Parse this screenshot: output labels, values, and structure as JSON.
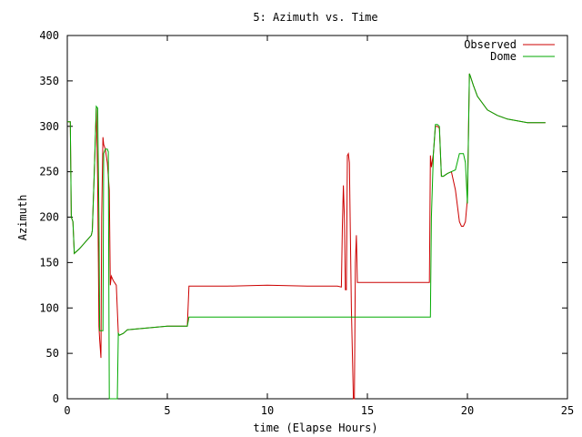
{
  "chart_data": {
    "type": "line",
    "title": "5: Azimuth vs. Time",
    "xlabel": "time (Elapse Hours)",
    "ylabel": "Azimuth",
    "xlim": [
      0,
      25
    ],
    "ylim": [
      0,
      400
    ],
    "xticks": [
      0,
      5,
      10,
      15,
      20,
      25
    ],
    "yticks": [
      0,
      50,
      100,
      150,
      200,
      250,
      300,
      350,
      400
    ],
    "grid": false,
    "legend_position": "top-right",
    "series": [
      {
        "name": "Observed",
        "color": "#cc0000",
        "x": [
          0.0,
          0.15,
          0.2,
          0.28,
          0.35,
          0.6,
          1.0,
          1.2,
          1.25,
          1.35,
          1.45,
          1.52,
          1.58,
          1.62,
          1.68,
          1.72,
          1.78,
          1.82,
          1.9,
          2.0,
          2.1,
          2.15,
          2.2,
          2.3,
          2.45,
          2.55,
          2.6,
          2.8,
          3.0,
          4.0,
          5.0,
          6.0,
          6.08,
          8.0,
          10.0,
          12.0,
          13.5,
          13.7,
          13.75,
          13.8,
          13.85,
          13.9,
          13.95,
          14.0,
          14.05,
          14.1,
          14.15,
          14.2,
          14.25,
          14.3,
          14.35,
          14.4,
          14.45,
          14.5,
          15.0,
          16.0,
          17.0,
          18.0,
          18.1,
          18.15,
          18.2,
          18.3,
          18.4,
          18.5,
          18.6,
          18.7,
          18.8,
          19.0,
          19.2,
          19.4,
          19.6,
          19.7,
          19.8,
          19.9,
          20.0,
          20.1,
          20.15,
          20.3,
          20.5,
          21.0,
          21.5,
          22.0,
          22.5,
          23.0,
          23.5,
          23.9
        ],
        "y": [
          305,
          305,
          200,
          195,
          160,
          165,
          175,
          180,
          185,
          250,
          320,
          240,
          80,
          65,
          45,
          200,
          288,
          280,
          275,
          260,
          230,
          125,
          135,
          130,
          125,
          72,
          70,
          72,
          76,
          78,
          80,
          80,
          124,
          124,
          125,
          124,
          124,
          123,
          190,
          235,
          200,
          120,
          120,
          268,
          270,
          260,
          180,
          100,
          50,
          0,
          0,
          150,
          180,
          128,
          128,
          128,
          128,
          128,
          128,
          268,
          255,
          270,
          300,
          300,
          298,
          245,
          245,
          248,
          250,
          230,
          195,
          190,
          190,
          195,
          220,
          358,
          355,
          345,
          333,
          318,
          312,
          308,
          306,
          304,
          304,
          304
        ]
      },
      {
        "name": "Dome",
        "color": "#00aa00",
        "x": [
          0.0,
          0.15,
          0.2,
          0.28,
          0.35,
          0.6,
          1.0,
          1.2,
          1.25,
          1.35,
          1.45,
          1.52,
          1.58,
          1.62,
          1.68,
          1.72,
          1.78,
          1.82,
          1.9,
          2.0,
          2.05,
          2.1,
          2.2,
          2.25,
          2.3,
          2.5,
          2.55,
          2.6,
          2.8,
          3.0,
          4.0,
          5.0,
          6.0,
          6.08,
          8.0,
          10.0,
          12.0,
          14.0,
          16.0,
          18.0,
          18.15,
          18.2,
          18.3,
          18.4,
          18.5,
          18.6,
          18.7,
          18.8,
          19.0,
          19.2,
          19.4,
          19.6,
          19.8,
          19.9,
          20.0,
          20.1,
          20.15,
          20.3,
          20.5,
          21.0,
          21.5,
          22.0,
          22.5,
          23.0,
          23.5,
          23.9
        ],
        "y": [
          305,
          305,
          200,
          195,
          160,
          165,
          175,
          180,
          185,
          250,
          322,
          320,
          200,
          75,
          75,
          75,
          75,
          270,
          275,
          275,
          272,
          0,
          0,
          0,
          0,
          0,
          72,
          70,
          72,
          76,
          78,
          80,
          80,
          90,
          90,
          90,
          90,
          90,
          90,
          90,
          90,
          200,
          270,
          302,
          302,
          300,
          245,
          245,
          248,
          250,
          252,
          270,
          270,
          260,
          215,
          358,
          355,
          345,
          333,
          318,
          312,
          308,
          306,
          304,
          304,
          304
        ]
      }
    ]
  }
}
